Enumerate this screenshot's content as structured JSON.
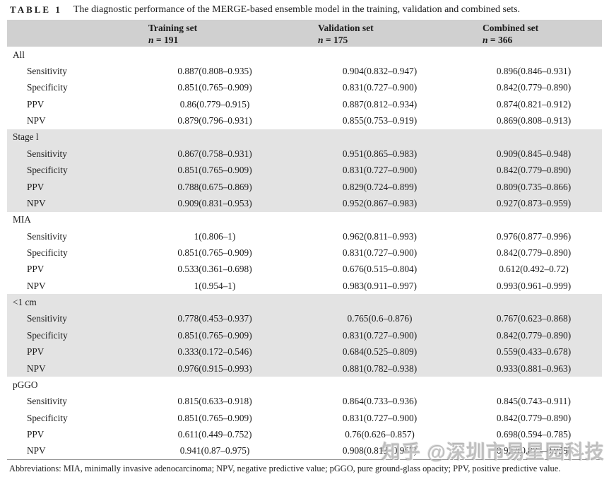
{
  "title": {
    "tag": "TABLE 1",
    "caption": "The diagnostic performance of the MERGE-based ensemble model in the training, validation and combined sets."
  },
  "table": {
    "columns": [
      {
        "label": "Training set",
        "n_var": "n",
        "n_value": " = 191"
      },
      {
        "label": "Validation set",
        "n_var": "n",
        "n_value": " = 175"
      },
      {
        "label": "Combined set",
        "n_var": "n",
        "n_value": " = 366"
      }
    ],
    "sections": [
      {
        "name": "All",
        "shaded": false,
        "rows": [
          {
            "metric": "Sensitivity",
            "values": [
              "0.887(0.808–0.935)",
              "0.904(0.832–0.947)",
              "0.896(0.846–0.931)"
            ]
          },
          {
            "metric": "Specificity",
            "values": [
              "0.851(0.765–0.909)",
              "0.831(0.727–0.900)",
              "0.842(0.779–0.890)"
            ]
          },
          {
            "metric": "PPV",
            "values": [
              "0.86(0.779–0.915)",
              "0.887(0.812–0.934)",
              "0.874(0.821–0.912)"
            ]
          },
          {
            "metric": "NPV",
            "values": [
              "0.879(0.796–0.931)",
              "0.855(0.753–0.919)",
              "0.869(0.808–0.913)"
            ]
          }
        ]
      },
      {
        "name": "Stage l",
        "shaded": true,
        "rows": [
          {
            "metric": "Sensitivity",
            "values": [
              "0.867(0.758–0.931)",
              "0.951(0.865–0.983)",
              "0.909(0.845–0.948)"
            ]
          },
          {
            "metric": "Specificity",
            "values": [
              "0.851(0.765–0.909)",
              "0.831(0.727–0.900)",
              "0.842(0.779–0.890)"
            ]
          },
          {
            "metric": "PPV",
            "values": [
              "0.788(0.675–0.869)",
              "0.829(0.724–0.899)",
              "0.809(0.735–0.866)"
            ]
          },
          {
            "metric": "NPV",
            "values": [
              "0.909(0.831–0.953)",
              "0.952(0.867–0.983)",
              "0.927(0.873–0.959)"
            ]
          }
        ]
      },
      {
        "name": "MIA",
        "shaded": false,
        "rows": [
          {
            "metric": "Sensitivity",
            "values": [
              "1(0.806–1)",
              "0.962(0.811–0.993)",
              "0.976(0.877–0.996)"
            ]
          },
          {
            "metric": "Specificity",
            "values": [
              "0.851(0.765–0.909)",
              "0.831(0.727–0.900)",
              "0.842(0.779–0.890)"
            ]
          },
          {
            "metric": "PPV",
            "values": [
              "0.533(0.361–0.698)",
              "0.676(0.515–0.804)",
              "0.612(0.492–0.72)"
            ]
          },
          {
            "metric": "NPV",
            "values": [
              "1(0.954–1)",
              "0.983(0.911–0.997)",
              "0.993(0.961–0.999)"
            ]
          }
        ]
      },
      {
        "name": "<1 cm",
        "shaded": true,
        "rows": [
          {
            "metric": "Sensitivity",
            "values": [
              "0.778(0.453–0.937)",
              "0.765(0.6–0.876)",
              "0.767(0.623–0.868)"
            ]
          },
          {
            "metric": "Specificity",
            "values": [
              "0.851(0.765–0.909)",
              "0.831(0.727–0.900)",
              "0.842(0.779–0.890)"
            ]
          },
          {
            "metric": "PPV",
            "values": [
              "0.333(0.172–0.546)",
              "0.684(0.525–0.809)",
              "0.559(0.433–0.678)"
            ]
          },
          {
            "metric": "NPV",
            "values": [
              "0.976(0.915–0.993)",
              "0.881(0.782–0.938)",
              "0.933(0.881–0.963)"
            ]
          }
        ]
      },
      {
        "name": "pGGO",
        "shaded": false,
        "rows": [
          {
            "metric": "Sensitivity",
            "values": [
              "0.815(0.633–0.918)",
              "0.864(0.733–0.936)",
              "0.845(0.743–0.911)"
            ]
          },
          {
            "metric": "Specificity",
            "values": [
              "0.851(0.765–0.909)",
              "0.831(0.727–0.900)",
              "0.842(0.779–0.890)"
            ]
          },
          {
            "metric": "PPV",
            "values": [
              "0.611(0.449–0.752)",
              "0.76(0.626–0.857)",
              "0.698(0.594–0.785)"
            ]
          },
          {
            "metric": "NPV",
            "values": [
              "0.941(0.87–0.975)",
              "0.908(0.813–0.957)",
              "0.927(0.873–0.959)"
            ]
          }
        ]
      }
    ]
  },
  "footnote": "Abbreviations: MIA, minimally invasive adenocarcinoma; NPV, negative predictive value; pGGO, pure ground-glass opacity; PPV, positive predictive value.",
  "watermark": {
    "text": "知乎 @深圳市易星园科技"
  },
  "colors": {
    "header_bg": "#d0d0d0",
    "band_bg": "#e3e3e3",
    "page_bg": "#ffffff",
    "text": "#1c1c1c",
    "rule": "#8a8a8a",
    "watermark": "#969696"
  }
}
